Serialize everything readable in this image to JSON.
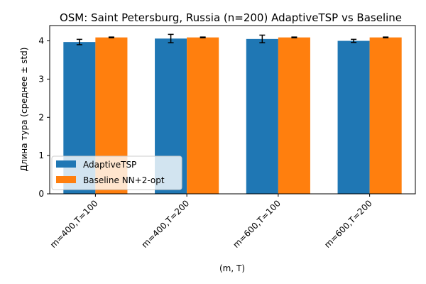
{
  "chart_data": {
    "type": "bar",
    "title": "OSM: Saint Petersburg, Russia (n=200) AdaptiveTSP vs Baseline",
    "xlabel": "(m, T)",
    "ylabel": "Длина тура (среднее ± std)",
    "categories": [
      "m=400,T=100",
      "m=400,T=200",
      "m=600,T=100",
      "m=600,T=200"
    ],
    "ylim": [
      0,
      4.4
    ],
    "yticks": [
      0,
      1,
      2,
      3,
      4
    ],
    "ytick_labels": [
      "0",
      "1",
      "2",
      "3",
      "4"
    ],
    "grid": false,
    "legend_position": "lower-left",
    "series": [
      {
        "name": "AdaptiveTSP",
        "color": "#1f77b4",
        "values": [
          3.97,
          4.06,
          4.05,
          4.0
        ],
        "errors": [
          0.07,
          0.11,
          0.1,
          0.04
        ]
      },
      {
        "name": "Baseline NN+2-opt",
        "color": "#ff7f0e",
        "values": [
          4.09,
          4.09,
          4.09,
          4.09
        ],
        "errors": [
          0.01,
          0.01,
          0.01,
          0.01
        ]
      }
    ]
  }
}
